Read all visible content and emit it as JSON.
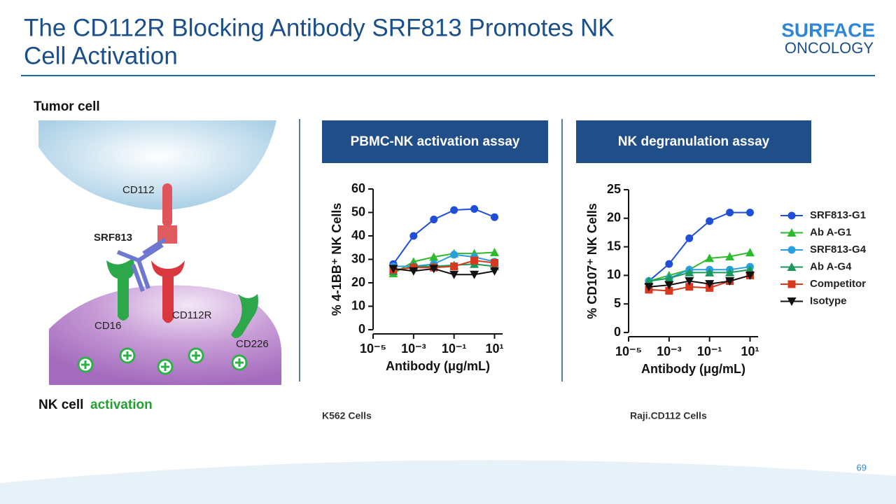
{
  "slide": {
    "title_line1": "The CD112R Blocking Antibody SRF813 Promotes NK",
    "title_line2": "Cell Activation",
    "logo_top": "SURFACE",
    "logo_bottom": "ONCOLOGY",
    "page_number": "69"
  },
  "diagram": {
    "tumor_cell": "Tumor cell",
    "cd112": "CD112",
    "srf813": "SRF813",
    "cd16": "CD16",
    "cd112r": "CD112R",
    "cd226": "CD226",
    "nk_cell": "NK cell",
    "activation": "activation"
  },
  "chart_data": [
    {
      "type": "line",
      "header": "PBMC-NK activation assay",
      "cell_line": "K562  Cells",
      "x_label": "Antibody (μg/mL)",
      "y_label": "% 4-1BB⁺ NK Cells",
      "xscale": "log",
      "x": [
        0.0001,
        0.001,
        0.01,
        0.1,
        1,
        10
      ],
      "xlim": [
        1e-05,
        25
      ],
      "xticks": [
        {
          "value": 1e-05,
          "label": "10⁻⁵"
        },
        {
          "value": 0.001,
          "label": "10⁻³"
        },
        {
          "value": 0.1,
          "label": "10⁻¹"
        },
        {
          "value": 10,
          "label": "10¹"
        }
      ],
      "ylim": [
        0,
        60
      ],
      "yticks": [
        0,
        10,
        20,
        30,
        40,
        50,
        60
      ],
      "series": [
        {
          "color": "#1f4fd8",
          "marker": "circle",
          "values": [
            28,
            40,
            47,
            51,
            51.5,
            48
          ]
        },
        {
          "color": "#2dbb2d",
          "marker": "triangle",
          "values": [
            24,
            29,
            31,
            32.5,
            32.5,
            33
          ]
        },
        {
          "color": "#2a9fe0",
          "marker": "circle",
          "values": [
            27,
            27,
            28,
            32,
            31,
            29
          ]
        },
        {
          "color": "#1a9a5a",
          "marker": "triangle",
          "values": [
            25,
            27,
            27,
            27.5,
            28,
            27
          ]
        },
        {
          "color": "#d9381e",
          "marker": "square",
          "values": [
            25.5,
            26.5,
            26.5,
            27,
            29.5,
            28.5
          ]
        },
        {
          "color": "#111111",
          "marker": "triangle-down",
          "values": [
            26,
            25,
            26,
            23.5,
            23.5,
            25
          ]
        }
      ]
    },
    {
      "type": "line",
      "header": "NK degranulation assay",
      "cell_line": "Raji.CD112 Cells",
      "x_label": "Antibody (μg/mL)",
      "y_label": "% CD107⁺ NK Cells",
      "xscale": "log",
      "legend": "right",
      "x": [
        0.0001,
        0.001,
        0.01,
        0.1,
        1,
        10
      ],
      "xlim": [
        1e-05,
        25
      ],
      "xticks": [
        {
          "value": 1e-05,
          "label": "10⁻⁵"
        },
        {
          "value": 0.001,
          "label": "10⁻³"
        },
        {
          "value": 0.1,
          "label": "10⁻¹"
        },
        {
          "value": 10,
          "label": "10¹"
        }
      ],
      "ylim": [
        0,
        25
      ],
      "yticks": [
        0,
        5,
        10,
        15,
        20,
        25
      ],
      "series": [
        {
          "name": "SRF813-G1",
          "color": "#1f4fd8",
          "marker": "circle",
          "values": [
            9,
            12,
            16.5,
            19.5,
            21,
            21
          ]
        },
        {
          "name": "Ab A-G1",
          "color": "#2dbb2d",
          "marker": "triangle",
          "values": [
            9,
            10,
            11,
            13,
            13.3,
            14
          ]
        },
        {
          "name": "SRF813-G4",
          "color": "#2a9fe0",
          "marker": "circle",
          "values": [
            9,
            9.5,
            11,
            11,
            11,
            11.5
          ]
        },
        {
          "name": "Ab A-G4",
          "color": "#1a9a5a",
          "marker": "triangle",
          "values": [
            9,
            9.5,
            10.5,
            10.5,
            10.5,
            11
          ]
        },
        {
          "name": "Competitor",
          "color": "#d9381e",
          "marker": "square",
          "values": [
            7.5,
            7.3,
            8,
            7.8,
            9,
            10
          ]
        },
        {
          "name": "Isotype",
          "color": "#111111",
          "marker": "triangle-down",
          "values": [
            8,
            8.3,
            9,
            8.5,
            9,
            10
          ]
        }
      ]
    }
  ]
}
